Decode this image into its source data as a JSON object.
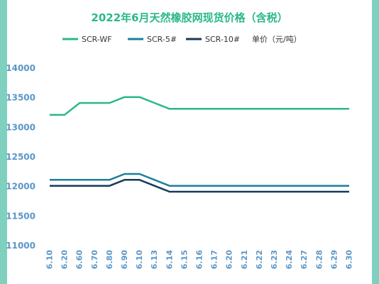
{
  "chart_data": {
    "type": "line",
    "title": "2022年6月天然橡胶网现货价格（含税）",
    "unit_label": "单价（元/吨）",
    "categories": [
      "6.10",
      "6.20",
      "6.60",
      "6.70",
      "6.80",
      "6.90",
      "6.10",
      "6.13",
      "6.14",
      "6.15",
      "6.16",
      "6.17",
      "6.20",
      "6.21",
      "6.22",
      "6.23",
      "6.24",
      "6.27",
      "6.28",
      "6.29",
      "6.30"
    ],
    "ylim": [
      11000,
      14000
    ],
    "yticks": [
      11000,
      11500,
      12000,
      12500,
      13000,
      13500,
      14000
    ],
    "grid": false,
    "legend_position": "top",
    "series": [
      {
        "name": "SCR-WF",
        "color": "#2bb888",
        "values": [
          13200,
          13200,
          13400,
          13400,
          13400,
          13500,
          13500,
          13400,
          13300,
          13300,
          13300,
          13300,
          13300,
          13300,
          13300,
          13300,
          13300,
          13300,
          13300,
          13300,
          13300
        ]
      },
      {
        "name": "SCR-5#",
        "color": "#1c7f9c",
        "values": [
          12100,
          12100,
          12100,
          12100,
          12100,
          12200,
          12200,
          12100,
          12000,
          12000,
          12000,
          12000,
          12000,
          12000,
          12000,
          12000,
          12000,
          12000,
          12000,
          12000,
          12000
        ]
      },
      {
        "name": "SCR-10#",
        "color": "#163a5c",
        "values": [
          12000,
          12000,
          12000,
          12000,
          12000,
          12100,
          12100,
          12000,
          11900,
          11900,
          11900,
          11900,
          11900,
          11900,
          11900,
          11900,
          11900,
          11900,
          11900,
          11900,
          11900
        ]
      }
    ]
  },
  "colors": {
    "frame": "#7fd0bf",
    "title": "#2bb888",
    "axis_text": "#5a96c8"
  }
}
